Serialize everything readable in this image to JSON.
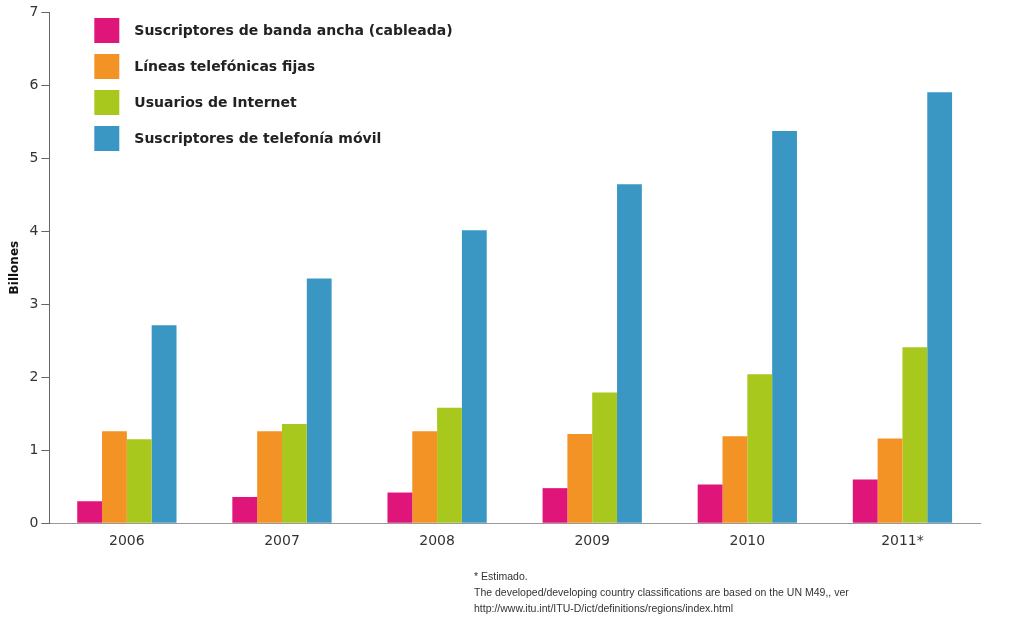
{
  "chart_data": {
    "type": "bar",
    "ylabel": "Billones",
    "categories": [
      "2006",
      "2007",
      "2008",
      "2009",
      "2010",
      "2011*"
    ],
    "series": [
      {
        "name": "Suscriptores de banda ancha (cableada)",
        "color": "#e0157a",
        "values": [
          0.3,
          0.36,
          0.42,
          0.48,
          0.53,
          0.6
        ]
      },
      {
        "name": "Líneas telefónicas fijas",
        "color": "#f39325",
        "values": [
          1.26,
          1.26,
          1.26,
          1.22,
          1.19,
          1.16
        ]
      },
      {
        "name": "Usuarios de Internet",
        "color": "#a8c81e",
        "values": [
          1.15,
          1.36,
          1.58,
          1.79,
          2.04,
          2.41
        ]
      },
      {
        "name": "Suscriptores de telefonía móvil",
        "color": "#3a97c4",
        "values": [
          2.71,
          3.35,
          4.01,
          4.64,
          5.37,
          5.9
        ]
      }
    ],
    "ylim": [
      0,
      7
    ],
    "yticks": [
      0,
      1,
      2,
      3,
      4,
      5,
      6,
      7
    ],
    "grid": false,
    "legend": "top left",
    "annotations": [
      "* Estimado.",
      "The developed/developing country classifications are based on the UN M49,, ver",
      "http://www.itu.int/ITU-D/ict/definitions/regions/index.html"
    ]
  }
}
